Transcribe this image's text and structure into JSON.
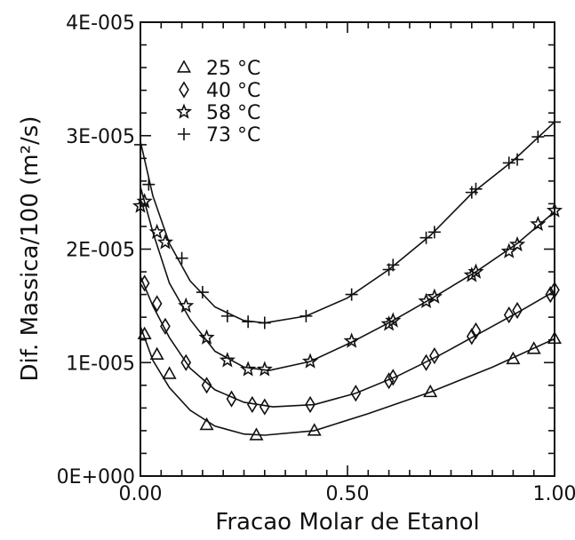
{
  "chart_data": {
    "type": "line",
    "xlabel": "Fracao Molar de Etanol",
    "ylabel": "Dif. Massica/100 (m²/s)",
    "xlim": [
      0,
      1
    ],
    "ylim": [
      0,
      4e-05
    ],
    "x_ticks": [
      0,
      0.5,
      1
    ],
    "x_tick_labels": [
      "0.00",
      "0.50",
      "1.00"
    ],
    "y_ticks": [
      0,
      1e-05,
      2e-05,
      3e-05,
      4e-05
    ],
    "y_tick_labels": [
      "0E+000",
      "1E-005",
      "2E-005",
      "3E-005",
      "4E-005"
    ],
    "grid": false,
    "legend_position": "top-left",
    "series": [
      {
        "name": "25 °C",
        "marker": "triangle",
        "points": [
          [
            0.01,
            1.25e-05
          ],
          [
            0.04,
            1.07e-05
          ],
          [
            0.07,
            9e-06
          ],
          [
            0.16,
            4.5e-06
          ],
          [
            0.28,
            3.6e-06
          ],
          [
            0.42,
            4e-06
          ],
          [
            0.7,
            7.4e-06
          ],
          [
            0.9,
            1.03e-05
          ],
          [
            0.95,
            1.12e-05
          ],
          [
            1.0,
            1.21e-05
          ]
        ],
        "curve": [
          [
            0.0,
            1.32e-05
          ],
          [
            0.03,
            1.02e-05
          ],
          [
            0.07,
            7.8e-06
          ],
          [
            0.12,
            5.8e-06
          ],
          [
            0.18,
            4.4e-06
          ],
          [
            0.25,
            3.7e-06
          ],
          [
            0.3,
            3.6e-06
          ],
          [
            0.42,
            4e-06
          ],
          [
            0.55,
            5.5e-06
          ],
          [
            0.7,
            7.4e-06
          ],
          [
            0.85,
            9.6e-06
          ],
          [
            1.0,
            1.21e-05
          ]
        ]
      },
      {
        "name": "40 °C",
        "marker": "diamond",
        "points": [
          [
            0.01,
            1.7e-05
          ],
          [
            0.04,
            1.52e-05
          ],
          [
            0.06,
            1.32e-05
          ],
          [
            0.11,
            1e-05
          ],
          [
            0.16,
            8e-06
          ],
          [
            0.22,
            6.8e-06
          ],
          [
            0.27,
            6.3e-06
          ],
          [
            0.3,
            6.1e-06
          ],
          [
            0.41,
            6.3e-06
          ],
          [
            0.52,
            7.3e-06
          ],
          [
            0.6,
            8.4e-06
          ],
          [
            0.61,
            8.7e-06
          ],
          [
            0.69,
            1e-05
          ],
          [
            0.71,
            1.06e-05
          ],
          [
            0.8,
            1.23e-05
          ],
          [
            0.81,
            1.28e-05
          ],
          [
            0.89,
            1.42e-05
          ],
          [
            0.91,
            1.46e-05
          ],
          [
            0.99,
            1.6e-05
          ],
          [
            1.0,
            1.64e-05
          ]
        ],
        "curve": [
          [
            0.0,
            1.76e-05
          ],
          [
            0.03,
            1.5e-05
          ],
          [
            0.07,
            1.22e-05
          ],
          [
            0.12,
            9.5e-06
          ],
          [
            0.18,
            7.6e-06
          ],
          [
            0.25,
            6.5e-06
          ],
          [
            0.32,
            6.1e-06
          ],
          [
            0.42,
            6.3e-06
          ],
          [
            0.52,
            7.3e-06
          ],
          [
            0.62,
            8.8e-06
          ],
          [
            0.72,
            1.06e-05
          ],
          [
            0.82,
            1.26e-05
          ],
          [
            0.92,
            1.46e-05
          ],
          [
            1.0,
            1.63e-05
          ]
        ]
      },
      {
        "name": "58 °C",
        "marker": "star",
        "points": [
          [
            0.0,
            2.38e-05
          ],
          [
            0.01,
            2.42e-05
          ],
          [
            0.04,
            2.15e-05
          ],
          [
            0.06,
            2.06e-05
          ],
          [
            0.11,
            1.5e-05
          ],
          [
            0.16,
            1.22e-05
          ],
          [
            0.21,
            1.02e-05
          ],
          [
            0.26,
            9.4e-06
          ],
          [
            0.3,
            9.4e-06
          ],
          [
            0.41,
            1.01e-05
          ],
          [
            0.51,
            1.19e-05
          ],
          [
            0.6,
            1.34e-05
          ],
          [
            0.61,
            1.37e-05
          ],
          [
            0.69,
            1.54e-05
          ],
          [
            0.71,
            1.58e-05
          ],
          [
            0.8,
            1.77e-05
          ],
          [
            0.81,
            1.8e-05
          ],
          [
            0.89,
            1.98e-05
          ],
          [
            0.91,
            2.04e-05
          ],
          [
            0.96,
            2.22e-05
          ],
          [
            1.0,
            2.34e-05
          ]
        ],
        "curve": [
          [
            0.0,
            2.55e-05
          ],
          [
            0.03,
            2.15e-05
          ],
          [
            0.07,
            1.7e-05
          ],
          [
            0.12,
            1.38e-05
          ],
          [
            0.18,
            1.1e-05
          ],
          [
            0.25,
            9.6e-06
          ],
          [
            0.31,
            9.3e-06
          ],
          [
            0.41,
            1.01e-05
          ],
          [
            0.51,
            1.18e-05
          ],
          [
            0.61,
            1.37e-05
          ],
          [
            0.71,
            1.58e-05
          ],
          [
            0.81,
            1.8e-05
          ],
          [
            0.91,
            2.05e-05
          ],
          [
            1.0,
            2.33e-05
          ]
        ]
      },
      {
        "name": "73 °C",
        "marker": "plus",
        "points": [
          [
            0.0,
            2.92e-05
          ],
          [
            0.02,
            2.57e-05
          ],
          [
            0.1,
            1.92e-05
          ],
          [
            0.15,
            1.62e-05
          ],
          [
            0.21,
            1.41e-05
          ],
          [
            0.26,
            1.36e-05
          ],
          [
            0.3,
            1.35e-05
          ],
          [
            0.4,
            1.41e-05
          ],
          [
            0.51,
            1.6e-05
          ],
          [
            0.6,
            1.82e-05
          ],
          [
            0.61,
            1.86e-05
          ],
          [
            0.69,
            2.1e-05
          ],
          [
            0.71,
            2.15e-05
          ],
          [
            0.8,
            2.5e-05
          ],
          [
            0.81,
            2.53e-05
          ],
          [
            0.89,
            2.76e-05
          ],
          [
            0.91,
            2.79e-05
          ],
          [
            0.96,
            2.99e-05
          ],
          [
            1.0,
            3.12e-05
          ]
        ],
        "curve": [
          [
            0.0,
            2.95e-05
          ],
          [
            0.03,
            2.47e-05
          ],
          [
            0.07,
            2.05e-05
          ],
          [
            0.12,
            1.72e-05
          ],
          [
            0.18,
            1.49e-05
          ],
          [
            0.25,
            1.37e-05
          ],
          [
            0.3,
            1.35e-05
          ],
          [
            0.4,
            1.41e-05
          ],
          [
            0.5,
            1.57e-05
          ],
          [
            0.6,
            1.82e-05
          ],
          [
            0.7,
            2.12e-05
          ],
          [
            0.8,
            2.49e-05
          ],
          [
            0.9,
            2.78e-05
          ],
          [
            1.0,
            3.12e-05
          ]
        ]
      }
    ]
  }
}
